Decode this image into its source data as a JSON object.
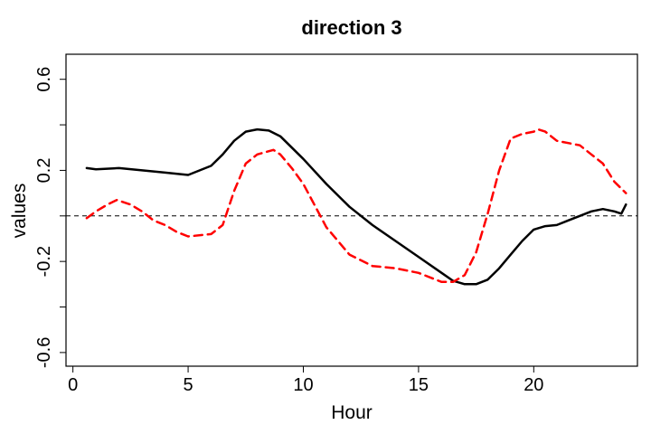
{
  "chart_data": {
    "type": "line",
    "title": "direction 3",
    "xlabel": "Hour",
    "ylabel": "values",
    "xlim": [
      -0.3,
      24.5
    ],
    "ylim": [
      -0.66,
      0.71
    ],
    "x_ticks": [
      0,
      5,
      10,
      15,
      20
    ],
    "x_tick_labels": [
      "0",
      "5",
      "10",
      "15",
      "20"
    ],
    "y_ticks": [
      -0.6,
      -0.4,
      -0.2,
      0.0,
      0.2,
      0.4,
      0.6
    ],
    "y_tick_labels": [
      "-0.6",
      "",
      "-0.2",
      "",
      "0.2",
      "",
      "0.6"
    ],
    "grid": false,
    "legend": "none",
    "reference_line": {
      "y": 0,
      "style": "dashed",
      "color": "#000000"
    },
    "series": [
      {
        "color": "#000000",
        "style": "solid",
        "x": [
          0.6,
          1,
          2,
          3,
          4,
          5,
          6,
          6.5,
          7,
          7.5,
          8,
          8.5,
          9,
          10,
          11,
          12,
          13,
          14,
          15,
          16,
          16.5,
          17,
          17.5,
          18,
          18.5,
          19,
          19.5,
          20,
          20.5,
          21,
          21.5,
          22,
          22.5,
          23,
          23.5,
          23.8,
          24
        ],
        "y": [
          0.21,
          0.205,
          0.21,
          0.2,
          0.19,
          0.18,
          0.22,
          0.27,
          0.33,
          0.37,
          0.38,
          0.375,
          0.35,
          0.25,
          0.14,
          0.04,
          -0.04,
          -0.11,
          -0.18,
          -0.25,
          -0.285,
          -0.3,
          -0.3,
          -0.28,
          -0.23,
          -0.17,
          -0.11,
          -0.06,
          -0.045,
          -0.04,
          -0.02,
          0.0,
          0.02,
          0.03,
          0.02,
          0.01,
          0.05
        ]
      },
      {
        "color": "#ff0000",
        "style": "dashed",
        "x": [
          0.6,
          1,
          1.5,
          1.9,
          2.5,
          3,
          3.5,
          4,
          4.5,
          5,
          6,
          6.5,
          7,
          7.5,
          8,
          8.7,
          9,
          9.5,
          10,
          11,
          12,
          13,
          14,
          15,
          16,
          16.5,
          17,
          17.5,
          18,
          18.5,
          19,
          19.5,
          20,
          20.2,
          20.5,
          21,
          22,
          22.5,
          23,
          23.5,
          24
        ],
        "y": [
          -0.01,
          0.02,
          0.05,
          0.07,
          0.05,
          0.02,
          -0.02,
          -0.04,
          -0.07,
          -0.09,
          -0.08,
          -0.04,
          0.11,
          0.23,
          0.27,
          0.29,
          0.27,
          0.21,
          0.14,
          -0.05,
          -0.17,
          -0.22,
          -0.23,
          -0.25,
          -0.29,
          -0.29,
          -0.26,
          -0.16,
          0.01,
          0.2,
          0.34,
          0.36,
          0.37,
          0.38,
          0.37,
          0.33,
          0.31,
          0.27,
          0.23,
          0.15,
          0.1
        ]
      }
    ]
  }
}
